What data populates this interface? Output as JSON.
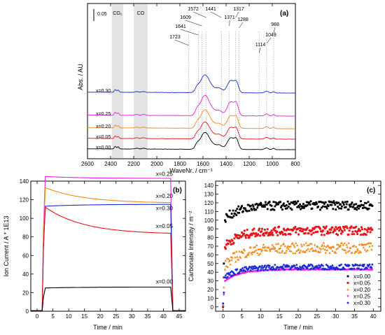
{
  "chart_data": [
    {
      "panel": "(a)",
      "type": "line",
      "xlabel": "WaveNr. / cm⁻¹",
      "ylabel": "Abs. / AU",
      "xlim": [
        2600,
        800
      ],
      "x_ticks": [
        2600,
        2400,
        2200,
        2000,
        1800,
        1600,
        1400,
        1200,
        1000,
        800
      ],
      "scale_bar_label": "0.05",
      "regions": [
        {
          "label": "CO₂",
          "from": 2390,
          "to": 2290
        },
        {
          "label": "CO",
          "from": 2200,
          "to": 2080
        }
      ],
      "peak_labels": [
        "1723",
        "1641",
        "1609",
        "1572",
        "1441",
        "1371",
        "1317",
        "1288",
        "1114",
        "1049",
        "988"
      ],
      "peak_positions": [
        1723,
        1641,
        1609,
        1572,
        1441,
        1371,
        1317,
        1288,
        1114,
        1049,
        988
      ],
      "series": [
        {
          "name": "x=0.00",
          "color": "#000000",
          "offset": 0.0,
          "scale": 1.0
        },
        {
          "name": "x=0.05",
          "color": "#e8151b",
          "offset": 0.05,
          "scale": 1.0
        },
        {
          "name": "x=0.20",
          "color": "#f08a1c",
          "offset": 0.1,
          "scale": 1.1
        },
        {
          "name": "x=0.25",
          "color": "#ee1fe6",
          "offset": 0.16,
          "scale": 1.2
        },
        {
          "name": "x=0.30",
          "color": "#1a2bd6",
          "offset": 0.27,
          "scale": 1.05
        }
      ]
    },
    {
      "panel": "(b)",
      "type": "line",
      "xlabel": "Time / min",
      "ylabel": "Ion Current / A * 1E13",
      "xlim": [
        -2,
        47
      ],
      "ylim": [
        0,
        140
      ],
      "x_ticks": [
        0,
        5,
        10,
        15,
        20,
        25,
        30,
        35,
        40,
        45
      ],
      "y_ticks": [
        0,
        20,
        40,
        60,
        80,
        100,
        120,
        140
      ],
      "series": [
        {
          "name": "x=0.25",
          "color": "#ee1fe6",
          "level_start": 145,
          "level_end": 143
        },
        {
          "name": "x=0.20",
          "color": "#f08a1c",
          "level_start": 133,
          "level_end": 117
        },
        {
          "name": "x=0.30",
          "color": "#1a2bd6",
          "level_start": 113,
          "level_end": 115
        },
        {
          "name": "x=0.05",
          "color": "#e8151b",
          "level_start": 112,
          "level_end": 84
        },
        {
          "name": "x=0.00",
          "color": "#000000",
          "level_start": 25,
          "level_end": 26
        }
      ]
    },
    {
      "panel": "(c)",
      "type": "scatter",
      "xlabel": "Time / min",
      "ylabel": "Carbonate Intensity / m⁻²",
      "xlim": [
        -2,
        42
      ],
      "ylim": [
        -5,
        145
      ],
      "x_ticks": [
        0,
        5,
        10,
        15,
        20,
        25,
        30,
        35,
        40
      ],
      "y_ticks": [
        0,
        10,
        20,
        30,
        40,
        50,
        60,
        70,
        80,
        90,
        100,
        110,
        120,
        130,
        140
      ],
      "legend_position": "bottom-right",
      "series": [
        {
          "name": "x=0.00",
          "color": "#000000",
          "marker": "square",
          "start": 100,
          "plateau": 117,
          "spread": 5
        },
        {
          "name": "x=0.05",
          "color": "#e8151b",
          "marker": "circle",
          "start": 68,
          "plateau": 88,
          "spread": 5
        },
        {
          "name": "x=0.20",
          "color": "#f08a1c",
          "marker": "triangle",
          "start": 45,
          "plateau": 68,
          "spread": 6
        },
        {
          "name": "x=0.25",
          "color": "#ee1fe6",
          "marker": "inv-triangle",
          "start": 28,
          "plateau": 43,
          "spread": 0.4
        },
        {
          "name": "x=0.30",
          "color": "#1a2bd6",
          "marker": "diamond",
          "start": 33,
          "plateau": 46,
          "spread": 3
        }
      ]
    }
  ]
}
